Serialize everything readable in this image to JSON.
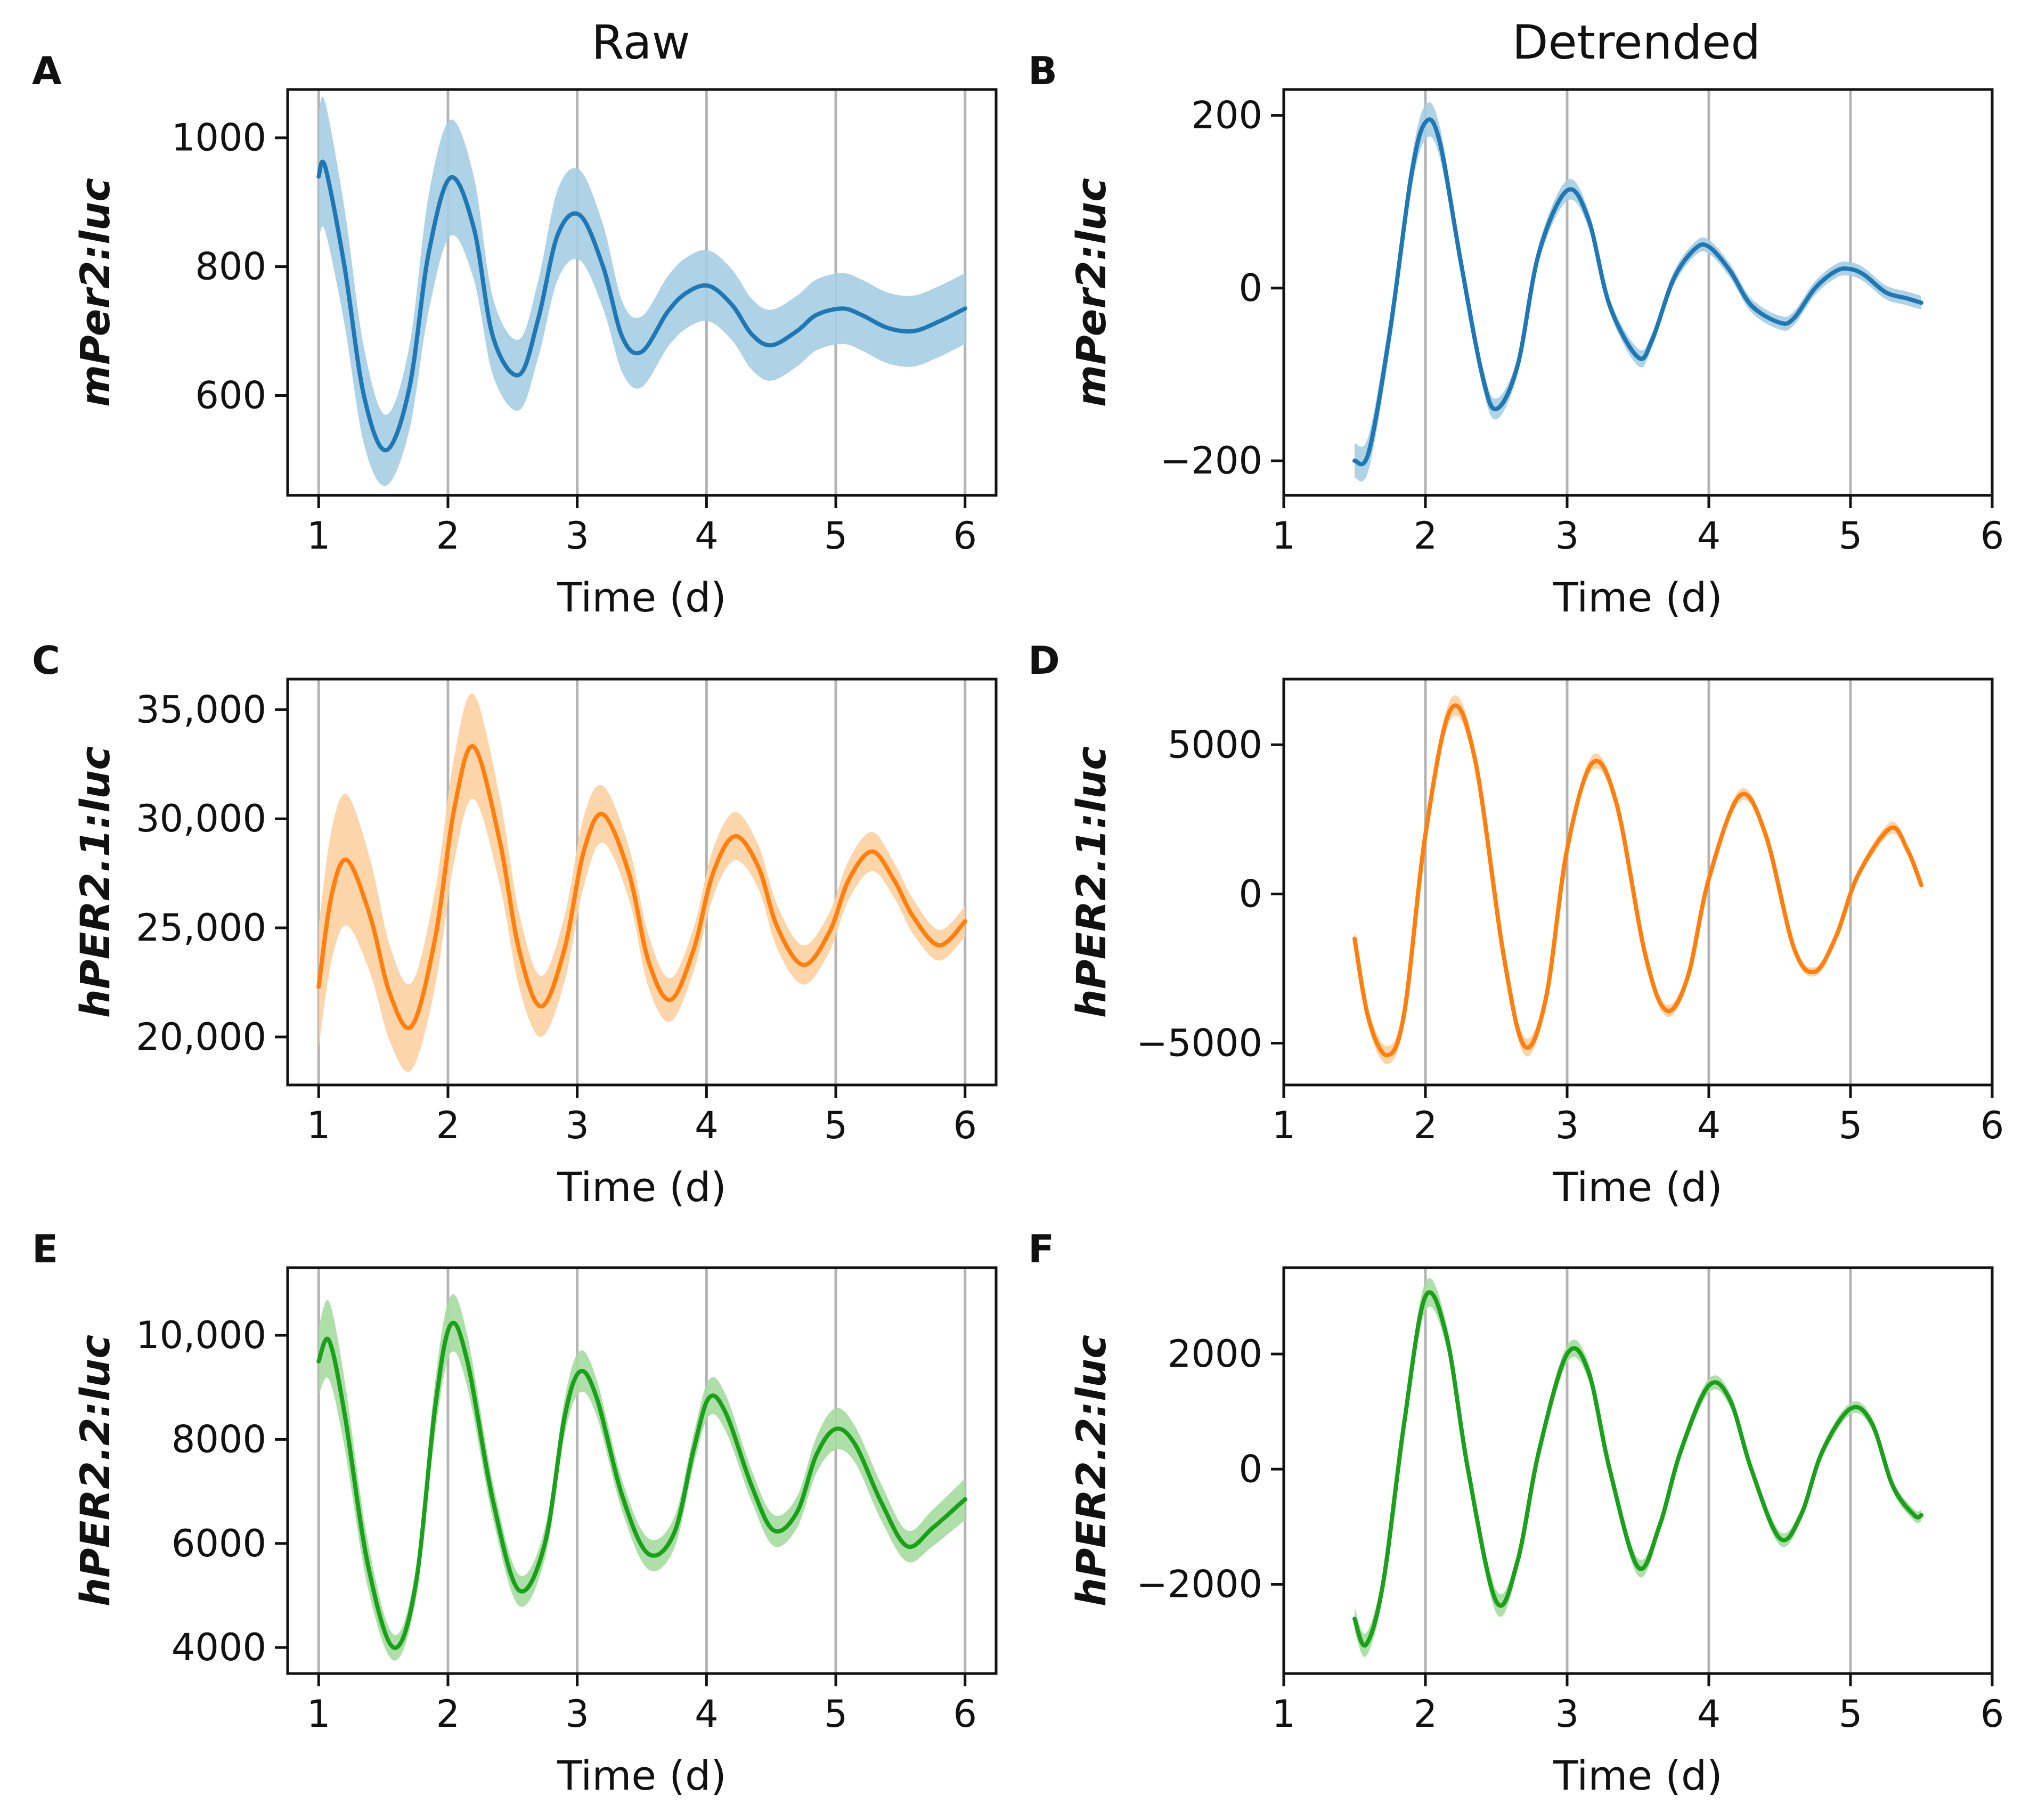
{
  "columns": [
    "Raw",
    "Detrended"
  ],
  "colors": {
    "blue": "#1f77b4",
    "blue_band": "#a6cee3",
    "orange": "#ff7f0e",
    "orange_band": "#fdd0a2",
    "green": "#1aa01a",
    "green_band": "#a6dba0",
    "vline": "#b4b4b4"
  },
  "chart_data": [
    {
      "id": "A",
      "panel_label": "A",
      "type": "line",
      "column": "Raw",
      "color": "blue",
      "xlabel": "Time (d)",
      "ylabel": "mPer2:luc",
      "xlim": [
        0.76,
        6.24
      ],
      "ylim": [
        445,
        1075
      ],
      "xticks": [
        1,
        2,
        3,
        4,
        5,
        6
      ],
      "xtick_labels": [
        "1",
        "2",
        "3",
        "4",
        "5",
        "6"
      ],
      "yticks": [
        600,
        800,
        1000
      ],
      "ytick_labels": [
        "600",
        "800",
        "1000"
      ],
      "vlines": [
        1,
        2,
        3,
        4,
        5,
        6
      ],
      "series": [
        {
          "name": "mPer2:luc raw mean",
          "x": [
            1.0,
            1.05,
            1.2,
            1.35,
            1.52,
            1.7,
            1.85,
            2.02,
            2.2,
            2.35,
            2.55,
            2.7,
            2.85,
            3.02,
            3.2,
            3.35,
            3.5,
            3.7,
            3.85,
            4.02,
            4.2,
            4.35,
            4.5,
            4.7,
            4.85,
            5.05,
            5.2,
            5.4,
            5.6,
            5.8,
            6.0
          ],
          "y": [
            940,
            955,
            800,
            600,
            515,
            610,
            820,
            938,
            860,
            690,
            632,
            720,
            850,
            880,
            800,
            690,
            668,
            730,
            760,
            770,
            740,
            695,
            678,
            700,
            725,
            735,
            725,
            705,
            700,
            715,
            735
          ],
          "band": [
            100,
            100,
            90,
            75,
            55,
            65,
            90,
            90,
            80,
            60,
            55,
            60,
            70,
            70,
            65,
            55,
            55,
            55,
            55,
            55,
            55,
            55,
            55,
            55,
            55,
            55,
            55,
            55,
            55,
            55,
            55
          ]
        }
      ]
    },
    {
      "id": "B",
      "panel_label": "B",
      "type": "line",
      "column": "Detrended",
      "color": "blue",
      "xlabel": "Time (d)",
      "ylabel": "mPer2:luc",
      "xlim": [
        1,
        6
      ],
      "ylim": [
        -240,
        230
      ],
      "xticks": [
        1,
        2,
        3,
        4,
        5,
        6
      ],
      "xtick_labels": [
        "1",
        "2",
        "3",
        "4",
        "5",
        "6"
      ],
      "yticks": [
        -200,
        0,
        200
      ],
      "ytick_labels": [
        "−200",
        "0",
        "200"
      ],
      "vlines": [
        2,
        3,
        4,
        5
      ],
      "series": [
        {
          "name": "mPer2:luc detrended mean",
          "x": [
            1.5,
            1.6,
            1.75,
            1.9,
            2.0,
            2.1,
            2.25,
            2.4,
            2.5,
            2.65,
            2.8,
            3.0,
            3.15,
            3.3,
            3.5,
            3.6,
            3.75,
            3.9,
            4.0,
            4.15,
            4.3,
            4.5,
            4.6,
            4.75,
            4.9,
            5.0,
            5.1,
            5.25,
            5.4,
            5.5
          ],
          "y": [
            -200,
            -190,
            -50,
            130,
            192,
            170,
            30,
            -100,
            -140,
            -90,
            40,
            113,
            80,
            -20,
            -80,
            -60,
            10,
            45,
            48,
            20,
            -20,
            -40,
            -35,
            0,
            20,
            22,
            15,
            -5,
            -12,
            -17
          ],
          "band": [
            20,
            20,
            18,
            18,
            20,
            18,
            12,
            12,
            12,
            10,
            10,
            12,
            10,
            8,
            10,
            8,
            8,
            8,
            8,
            8,
            8,
            8,
            8,
            8,
            8,
            8,
            8,
            8,
            8,
            8
          ]
        }
      ]
    },
    {
      "id": "C",
      "panel_label": "C",
      "type": "line",
      "column": "Raw",
      "color": "orange",
      "xlabel": "Time (d)",
      "ylabel": "hPER2.1:luc",
      "xlim": [
        0.76,
        6.24
      ],
      "ylim": [
        17800,
        36400
      ],
      "xticks": [
        1,
        2,
        3,
        4,
        5,
        6
      ],
      "xtick_labels": [
        "1",
        "2",
        "3",
        "4",
        "5",
        "6"
      ],
      "yticks": [
        20000,
        25000,
        30000,
        35000
      ],
      "ytick_labels": [
        "20,000",
        "25,000",
        "30,000",
        "35,000"
      ],
      "vlines": [
        1,
        2,
        3,
        4,
        5,
        6
      ],
      "series": [
        {
          "name": "hPER2.1:luc raw mean",
          "x": [
            1.0,
            1.1,
            1.22,
            1.4,
            1.55,
            1.72,
            1.9,
            2.05,
            2.2,
            2.4,
            2.55,
            2.72,
            2.9,
            3.05,
            3.2,
            3.4,
            3.55,
            3.72,
            3.9,
            4.05,
            4.22,
            4.4,
            4.55,
            4.75,
            4.95,
            5.1,
            5.28,
            5.45,
            5.6,
            5.8,
            6.0
          ],
          "y": [
            22300,
            26500,
            28100,
            25500,
            22000,
            20500,
            24500,
            30500,
            33300,
            29000,
            24000,
            21400,
            24000,
            28500,
            30200,
            27500,
            23500,
            21700,
            24000,
            27500,
            29200,
            27800,
            25000,
            23300,
            24800,
            27200,
            28500,
            27200,
            25500,
            24200,
            25300
          ],
          "band": [
            2800,
            3000,
            3000,
            2600,
            2200,
            2000,
            2200,
            2400,
            2400,
            2000,
            1700,
            1400,
            1500,
            1600,
            1300,
            1200,
            1200,
            1000,
            1000,
            1100,
            1100,
            1000,
            1000,
            900,
            900,
            900,
            900,
            800,
            800,
            700,
            700
          ]
        }
      ]
    },
    {
      "id": "D",
      "panel_label": "D",
      "type": "line",
      "column": "Detrended",
      "color": "orange",
      "xlabel": "Time (d)",
      "ylabel": "hPER2.1:luc",
      "xlim": [
        1,
        6
      ],
      "ylim": [
        -6400,
        7200
      ],
      "xticks": [
        1,
        2,
        3,
        4,
        5,
        6
      ],
      "xtick_labels": [
        "1",
        "2",
        "3",
        "4",
        "5",
        "6"
      ],
      "yticks": [
        -5000,
        0,
        5000
      ],
      "ytick_labels": [
        "−5000",
        "0",
        "5000"
      ],
      "vlines": [
        2,
        3,
        4,
        5
      ],
      "series": [
        {
          "name": "hPER2.1:luc detrended mean",
          "x": [
            1.5,
            1.6,
            1.73,
            1.85,
            2.0,
            2.18,
            2.35,
            2.55,
            2.7,
            2.85,
            3.0,
            3.18,
            3.35,
            3.55,
            3.7,
            3.85,
            4.0,
            4.22,
            4.4,
            4.6,
            4.75,
            4.9,
            5.05,
            5.28,
            5.4,
            5.5
          ],
          "y": [
            -1500,
            -4200,
            -5400,
            -4000,
            2000,
            6200,
            4500,
            -2000,
            -5100,
            -3500,
            1500,
            4400,
            3000,
            -2000,
            -3900,
            -2800,
            500,
            3300,
            2000,
            -1800,
            -2600,
            -1400,
            600,
            2200,
            1500,
            300
          ],
          "band": [
            300,
            300,
            300,
            300,
            300,
            350,
            300,
            250,
            300,
            250,
            200,
            250,
            200,
            200,
            200,
            200,
            150,
            200,
            150,
            150,
            150,
            150,
            150,
            200,
            150,
            150
          ]
        }
      ]
    },
    {
      "id": "E",
      "panel_label": "E",
      "type": "line",
      "column": "Raw",
      "color": "green",
      "xlabel": "Time (d)",
      "ylabel": "hPER2.2:luc",
      "xlim": [
        0.76,
        6.24
      ],
      "ylim": [
        3500,
        11300
      ],
      "xticks": [
        1,
        2,
        3,
        4,
        5,
        6
      ],
      "xtick_labels": [
        "1",
        "2",
        "3",
        "4",
        "5",
        "6"
      ],
      "yticks": [
        4000,
        6000,
        8000,
        10000
      ],
      "ytick_labels": [
        "4000",
        "6000",
        "8000",
        "10,000"
      ],
      "vlines": [
        1,
        2,
        3,
        4,
        5,
        6
      ],
      "series": [
        {
          "name": "hPER2.2:luc raw mean",
          "x": [
            1.0,
            1.08,
            1.2,
            1.38,
            1.58,
            1.75,
            1.9,
            2.02,
            2.15,
            2.35,
            2.55,
            2.75,
            2.9,
            3.02,
            3.15,
            3.35,
            3.55,
            3.75,
            3.9,
            4.02,
            4.15,
            4.35,
            4.52,
            4.7,
            4.85,
            5.0,
            5.15,
            5.35,
            5.55,
            5.75,
            6.0
          ],
          "y": [
            9500,
            9900,
            8500,
            5600,
            4000,
            5200,
            8600,
            10200,
            9500,
            6800,
            5100,
            6000,
            8400,
            9300,
            8800,
            6900,
            5800,
            6200,
            7800,
            8800,
            8500,
            7100,
            6250,
            6600,
            7700,
            8200,
            7900,
            6800,
            5950,
            6300,
            6850
          ],
          "band": [
            650,
            750,
            650,
            450,
            250,
            300,
            500,
            550,
            500,
            350,
            300,
            300,
            350,
            400,
            350,
            300,
            300,
            300,
            300,
            350,
            350,
            300,
            300,
            300,
            350,
            400,
            350,
            350,
            300,
            350,
            400
          ]
        }
      ]
    },
    {
      "id": "F",
      "panel_label": "F",
      "type": "line",
      "column": "Detrended",
      "color": "green",
      "xlabel": "Time (d)",
      "ylabel": "hPER2.2:luc",
      "xlim": [
        1,
        6
      ],
      "ylim": [
        -3550,
        3500
      ],
      "xticks": [
        1,
        2,
        3,
        4,
        5,
        6
      ],
      "xtick_labels": [
        "1",
        "2",
        "3",
        "4",
        "5",
        "6"
      ],
      "yticks": [
        -2000,
        0,
        2000
      ],
      "ytick_labels": [
        "−2000",
        "0",
        "2000"
      ],
      "vlines": [
        2,
        3,
        4,
        5
      ],
      "series": [
        {
          "name": "hPER2.2:luc detrended mean",
          "x": [
            1.5,
            1.58,
            1.7,
            1.85,
            2.0,
            2.15,
            2.3,
            2.5,
            2.65,
            2.8,
            3.0,
            3.15,
            3.3,
            3.5,
            3.65,
            3.8,
            4.0,
            4.15,
            4.3,
            4.5,
            4.65,
            4.8,
            5.0,
            5.15,
            5.3,
            5.45,
            5.5
          ],
          "y": [
            -2600,
            -3050,
            -2000,
            800,
            3000,
            2300,
            0,
            -2300,
            -1600,
            300,
            2000,
            1700,
            0,
            -1700,
            -1000,
            300,
            1450,
            1200,
            0,
            -1200,
            -800,
            300,
            1050,
            800,
            -300,
            -800,
            -800
          ],
          "band": [
            200,
            200,
            200,
            200,
            250,
            200,
            150,
            200,
            150,
            150,
            150,
            150,
            120,
            150,
            120,
            120,
            120,
            120,
            100,
            120,
            100,
            100,
            100,
            100,
            100,
            100,
            100
          ]
        }
      ]
    }
  ]
}
